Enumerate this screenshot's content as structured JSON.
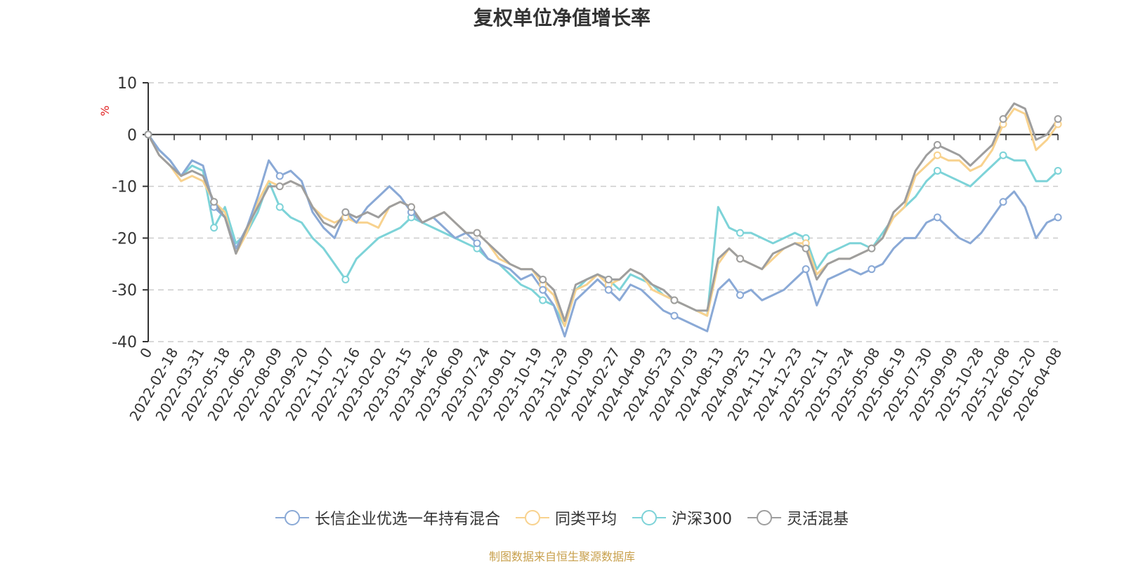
{
  "chart_data": {
    "type": "line",
    "title": "复权单位净值增长率",
    "ylabel": "%",
    "xlabel": "",
    "ylim": [
      -40,
      10
    ],
    "yticks": [
      10,
      0,
      -10,
      -20,
      -30,
      -40
    ],
    "xticks": [
      "0",
      "2022-02-18",
      "2022-03-31",
      "2022-05-18",
      "2022-06-29",
      "2022-08-09",
      "2022-09-20",
      "2022-11-07",
      "2022-12-16",
      "2023-02-02",
      "2023-03-15",
      "2023-04-26",
      "2023-06-09",
      "2023-07-24",
      "2023-09-01",
      "2023-10-19",
      "2023-11-29",
      "2024-01-09",
      "2024-02-27",
      "2024-04-09",
      "2024-05-23",
      "2024-07-03",
      "2024-08-13",
      "2024-09-25",
      "2024-11-12",
      "2024-12-23",
      "2025-02-11",
      "2025-03-24",
      "2025-05-08",
      "2025-06-19",
      "2025-07-30",
      "2025-09-09",
      "2025-10-28",
      "2025-12-08",
      "2026-01-20",
      "2026-04-08"
    ],
    "grid": true,
    "legend_position": "bottom",
    "series": [
      {
        "name": "长信企业优选一年持有混合",
        "color": "#8aa9d6",
        "values": [
          0,
          -3,
          -5,
          -8,
          -5,
          -6,
          -14,
          -16,
          -22,
          -18,
          -12,
          -5,
          -8,
          -7,
          -9,
          -15,
          -18,
          -20,
          -15,
          -17,
          -14,
          -12,
          -10,
          -12,
          -15,
          -17,
          -16,
          -18,
          -20,
          -19,
          -21,
          -24,
          -25,
          -26,
          -28,
          -27,
          -30,
          -33,
          -39,
          -32,
          -30,
          -28,
          -30,
          -32,
          -29,
          -30,
          -32,
          -34,
          -35,
          -36,
          -37,
          -38,
          -30,
          -28,
          -31,
          -30,
          -32,
          -31,
          -30,
          -28,
          -26,
          -33,
          -28,
          -27,
          -26,
          -27,
          -26,
          -25,
          -22,
          -20,
          -20,
          -17,
          -16,
          -18,
          -20,
          -21,
          -19,
          -16,
          -13,
          -11,
          -14,
          -20,
          -17,
          -16
        ]
      },
      {
        "name": "同类平均",
        "color": "#f8d28e",
        "values": [
          0,
          -4,
          -6,
          -9,
          -8,
          -9,
          -13,
          -15,
          -23,
          -19,
          -13,
          -9,
          -10,
          -9,
          -10,
          -14,
          -16,
          -17,
          -16,
          -17,
          -17,
          -18,
          -14,
          -13,
          -14,
          -17,
          -16,
          -15,
          -17,
          -19,
          -19,
          -21,
          -24,
          -25,
          -26,
          -26,
          -29,
          -31,
          -37,
          -30,
          -29,
          -27,
          -29,
          -28,
          -26,
          -27,
          -30,
          -31,
          -32,
          -33,
          -34,
          -35,
          -25,
          -22,
          -24,
          -25,
          -26,
          -24,
          -22,
          -21,
          -21,
          -27,
          -25,
          -24,
          -24,
          -23,
          -22,
          -20,
          -16,
          -14,
          -8,
          -6,
          -4,
          -5,
          -5,
          -7,
          -6,
          -3,
          2,
          5,
          4,
          -3,
          -1,
          2
        ]
      },
      {
        "name": "沪深300",
        "color": "#7dd3d8",
        "values": [
          0,
          -3,
          -5,
          -8,
          -6,
          -7,
          -18,
          -14,
          -21,
          -19,
          -15,
          -9,
          -14,
          -16,
          -17,
          -20,
          -22,
          -25,
          -28,
          -24,
          -22,
          -20,
          -19,
          -18,
          -16,
          -17,
          -18,
          -19,
          -20,
          -21,
          -22,
          -24,
          -25,
          -27,
          -29,
          -30,
          -32,
          -33,
          -37,
          -30,
          -28,
          -27,
          -28,
          -30,
          -27,
          -28,
          -29,
          -31,
          -32,
          -33,
          -34,
          -35,
          -14,
          -18,
          -19,
          -19,
          -20,
          -21,
          -20,
          -19,
          -20,
          -26,
          -23,
          -22,
          -21,
          -21,
          -22,
          -19,
          -16,
          -14,
          -12,
          -9,
          -7,
          -8,
          -9,
          -10,
          -8,
          -6,
          -4,
          -5,
          -5,
          -9,
          -9,
          -7
        ]
      },
      {
        "name": "灵活混基",
        "color": "#9e9e9e",
        "values": [
          0,
          -4,
          -6,
          -8,
          -7,
          -8,
          -13,
          -16,
          -23,
          -18,
          -14,
          -10,
          -10,
          -9,
          -10,
          -14,
          -17,
          -18,
          -15,
          -16,
          -15,
          -16,
          -14,
          -13,
          -14,
          -17,
          -16,
          -15,
          -17,
          -19,
          -19,
          -21,
          -23,
          -25,
          -26,
          -26,
          -28,
          -30,
          -36,
          -29,
          -28,
          -27,
          -28,
          -28,
          -26,
          -27,
          -29,
          -30,
          -32,
          -33,
          -34,
          -34,
          -24,
          -22,
          -24,
          -25,
          -26,
          -23,
          -22,
          -21,
          -22,
          -28,
          -25,
          -24,
          -24,
          -23,
          -22,
          -20,
          -15,
          -13,
          -7,
          -4,
          -2,
          -3,
          -4,
          -6,
          -4,
          -2,
          3,
          6,
          5,
          -1,
          0,
          3
        ]
      }
    ]
  },
  "source_note": "制图数据来自恒生聚源数据库"
}
